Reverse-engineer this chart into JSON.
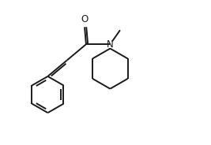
{
  "bg_color": "#ffffff",
  "line_color": "#1a1a1a",
  "line_width": 1.4,
  "figsize": [
    2.67,
    1.84
  ],
  "dpi": 100,
  "xlim": [
    0.0,
    10.0
  ],
  "ylim": [
    0.0,
    7.5
  ]
}
